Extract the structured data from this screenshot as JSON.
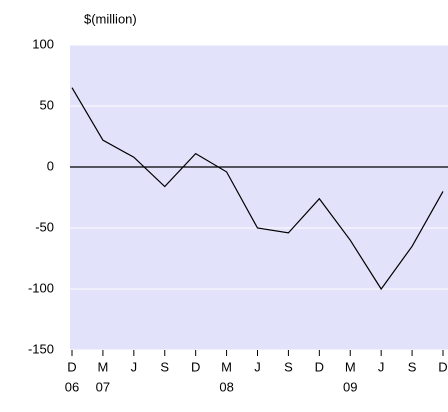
{
  "chart_data": {
    "type": "line",
    "unit_label": "$(million)",
    "categories": [
      "D",
      "M",
      "J",
      "S",
      "D",
      "M",
      "J",
      "S",
      "D",
      "M",
      "J",
      "S",
      "D"
    ],
    "year_labels": [
      "06",
      "07",
      null,
      null,
      null,
      "08",
      null,
      null,
      null,
      "09",
      null,
      null,
      null
    ],
    "values": [
      65,
      22,
      8,
      -16,
      11,
      -4,
      -50,
      -54,
      -26,
      -60,
      -100,
      -65,
      -20
    ],
    "color": "#000000",
    "background": "#e2e2fa",
    "ylim": [
      -150,
      100
    ],
    "yticks": [
      -150,
      -100,
      -50,
      0,
      50,
      100
    ],
    "grid": true
  }
}
